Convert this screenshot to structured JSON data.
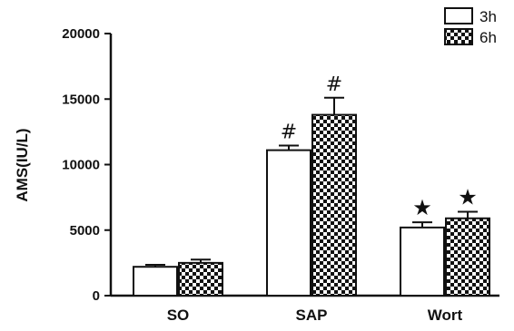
{
  "chart_data": {
    "type": "bar",
    "ylabel": "AMS(IU/L)",
    "xlabel": "",
    "ylim": [
      0,
      20000
    ],
    "yticks": [
      0,
      5000,
      10000,
      15000,
      20000
    ],
    "categories": [
      "SO",
      "SAP",
      "Wort"
    ],
    "series": [
      {
        "name": "3h",
        "values": [
          2200,
          11100,
          5200
        ],
        "errors": [
          150,
          350,
          400
        ],
        "pattern": "solid-white"
      },
      {
        "name": "6h",
        "values": [
          2500,
          13800,
          5900
        ],
        "errors": [
          250,
          1300,
          500
        ],
        "pattern": "checkerboard"
      }
    ],
    "annotations": [
      {
        "category": "SAP",
        "series": "3h",
        "text": "#"
      },
      {
        "category": "SAP",
        "series": "6h",
        "text": "#"
      },
      {
        "category": "Wort",
        "series": "3h",
        "text": "★"
      },
      {
        "category": "Wort",
        "series": "6h",
        "text": "★"
      }
    ],
    "legend_position": "top-right",
    "grid": false
  }
}
